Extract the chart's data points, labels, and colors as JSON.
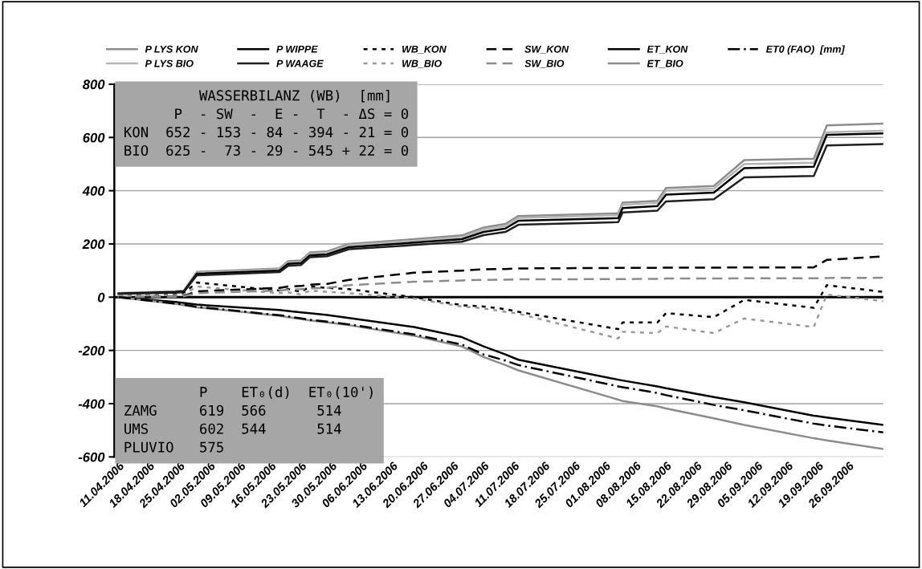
{
  "chart_data": {
    "type": "line",
    "x": [
      "2006-04-11",
      "2006-04-24",
      "2006-04-26",
      "2006-04-29",
      "2006-05-18",
      "2006-05-20",
      "2006-05-23",
      "2006-05-25",
      "2006-05-29",
      "2006-06-03",
      "2006-06-18",
      "2006-06-29",
      "2006-07-04",
      "2006-07-09",
      "2006-07-12",
      "2006-08-04",
      "2006-08-05",
      "2006-08-13",
      "2006-08-15",
      "2006-08-26",
      "2006-09-02",
      "2006-09-18",
      "2006-09-21",
      "2006-10-04"
    ],
    "series": [
      {
        "name": "P LYS KON",
        "color": "#8c8c8c",
        "line_style": "solid",
        "values": [
          15,
          22,
          25,
          95,
          108,
          135,
          138,
          168,
          172,
          200,
          218,
          232,
          262,
          275,
          305,
          315,
          355,
          362,
          410,
          418,
          515,
          520,
          645,
          652
        ]
      },
      {
        "name": "P LYS BIO",
        "color": "#b4b4b4",
        "line_style": "solid",
        "values": [
          15,
          21,
          24,
          92,
          105,
          130,
          133,
          163,
          167,
          195,
          212,
          226,
          255,
          268,
          298,
          308,
          347,
          354,
          400,
          408,
          500,
          505,
          620,
          625
        ]
      },
      {
        "name": "P WIPPE",
        "color": "#000000",
        "line_style": "solid",
        "values": [
          14,
          20,
          22,
          88,
          100,
          125,
          128,
          157,
          161,
          188,
          205,
          218,
          245,
          258,
          287,
          297,
          335,
          342,
          385,
          393,
          485,
          490,
          610,
          615
        ]
      },
      {
        "name": "P WAAGE",
        "color": "#202020",
        "line_style": "solid",
        "values": [
          12,
          17,
          19,
          82,
          94,
          118,
          121,
          150,
          154,
          180,
          196,
          208,
          233,
          245,
          272,
          282,
          318,
          325,
          360,
          368,
          450,
          455,
          570,
          575
        ]
      },
      {
        "name": "WB_KON",
        "color": "#000000",
        "line_style": "dotted",
        "values": [
          5,
          10,
          15,
          55,
          25,
          30,
          20,
          40,
          35,
          30,
          0,
          -30,
          -35,
          -45,
          -55,
          -120,
          -95,
          -95,
          -60,
          -75,
          -10,
          -40,
          45,
          20
        ]
      },
      {
        "name": "WB_BIO",
        "color": "#9a9a9a",
        "line_style": "dotted",
        "values": [
          5,
          8,
          10,
          40,
          15,
          18,
          10,
          25,
          20,
          15,
          -5,
          -35,
          -42,
          -55,
          -62,
          -155,
          -130,
          -135,
          -110,
          -135,
          -80,
          -112,
          10,
          -15
        ]
      },
      {
        "name": "SW_KON",
        "color": "#000000",
        "line_style": "dashed",
        "values": [
          0,
          2,
          5,
          22,
          35,
          40,
          42,
          47,
          50,
          65,
          92,
          100,
          105,
          106,
          108,
          110,
          110,
          110,
          111,
          111,
          112,
          112,
          140,
          153
        ]
      },
      {
        "name": "SW_BIO",
        "color": "#8c8c8c",
        "line_style": "dashed",
        "values": [
          0,
          2,
          4,
          15,
          25,
          28,
          30,
          33,
          35,
          45,
          58,
          63,
          65,
          66,
          67,
          68,
          68,
          69,
          70,
          70,
          71,
          71,
          72,
          73
        ]
      },
      {
        "name": "ET_KON",
        "color": "#000000",
        "line_style": "solid",
        "values": [
          0,
          -18,
          -22,
          -28,
          -48,
          -52,
          -57,
          -60,
          -67,
          -78,
          -112,
          -150,
          -185,
          -215,
          -235,
          -310,
          -313,
          -335,
          -342,
          -375,
          -395,
          -445,
          -452,
          -480
        ]
      },
      {
        "name": "ET_BIO",
        "color": "#8c8c8c",
        "line_style": "solid",
        "values": [
          0,
          -25,
          -30,
          -38,
          -70,
          -75,
          -82,
          -87,
          -95,
          -105,
          -145,
          -185,
          -225,
          -255,
          -275,
          -385,
          -390,
          -410,
          -418,
          -455,
          -480,
          -530,
          -538,
          -570
        ]
      },
      {
        "name": "ET0 (FAO)  [mm]",
        "color": "#000000",
        "line_style": "dashdot",
        "values": [
          0,
          -24,
          -28,
          -36,
          -68,
          -72,
          -80,
          -85,
          -92,
          -102,
          -140,
          -178,
          -215,
          -238,
          -255,
          -335,
          -338,
          -360,
          -368,
          -405,
          -425,
          -475,
          -482,
          -508
        ]
      }
    ],
    "xlim": [
      "2006-04-10",
      "2006-10-04"
    ],
    "xticks": [
      {
        "value": "2006-04-11",
        "label": "11.04.2006"
      },
      {
        "value": "2006-04-18",
        "label": "18.04.2006"
      },
      {
        "value": "2006-04-25",
        "label": "25.04.2006"
      },
      {
        "value": "2006-05-02",
        "label": "02.05.2006"
      },
      {
        "value": "2006-05-09",
        "label": "09.05.2006"
      },
      {
        "value": "2006-05-16",
        "label": "16.05.2006"
      },
      {
        "value": "2006-05-23",
        "label": "23.05.2006"
      },
      {
        "value": "2006-05-30",
        "label": "30.05.2006"
      },
      {
        "value": "2006-06-06",
        "label": "06.06.2006"
      },
      {
        "value": "2006-06-13",
        "label": "13.06.2006"
      },
      {
        "value": "2006-06-20",
        "label": "20.06.2006"
      },
      {
        "value": "2006-06-27",
        "label": "27.06.2006"
      },
      {
        "value": "2006-07-04",
        "label": "04.07.2006"
      },
      {
        "value": "2006-07-11",
        "label": "11.07.2006"
      },
      {
        "value": "2006-07-18",
        "label": "18.07.2006"
      },
      {
        "value": "2006-07-25",
        "label": "25.07.2006"
      },
      {
        "value": "2006-08-01",
        "label": "01.08.2006"
      },
      {
        "value": "2006-08-08",
        "label": "08.08.2006"
      },
      {
        "value": "2006-08-15",
        "label": "15.08.2006"
      },
      {
        "value": "2006-08-22",
        "label": "22.08.2006"
      },
      {
        "value": "2006-08-29",
        "label": "29.08.2006"
      },
      {
        "value": "2006-09-05",
        "label": "05.09.2006"
      },
      {
        "value": "2006-09-12",
        "label": "12.09.2006"
      },
      {
        "value": "2006-09-19",
        "label": "19.09.2006"
      },
      {
        "value": "2006-09-26",
        "label": "26.09.2006"
      }
    ],
    "ylim": [
      -600,
      800
    ],
    "yticks": [
      -600,
      -400,
      -200,
      0,
      200,
      400,
      600,
      800
    ],
    "grid": "y",
    "legend": "top",
    "ref_lines": [
      {
        "axis": "y",
        "value": 0,
        "color": "#000000"
      }
    ],
    "annotations": [
      "         WASSERBILANZ (WB)  [mm]\n      P  - SW  -  E -  T  - ΔS = 0\nKON  652 - 153 - 84 - 394 - 21 = 0\nBIO  625 -  73 - 29 - 545 + 22 = 0",
      "         P    ET₀(d)  ET₀(10')\nZAMG     619  566      514\nUMS      602  544      514\nPLUVIO   575                "
    ]
  }
}
